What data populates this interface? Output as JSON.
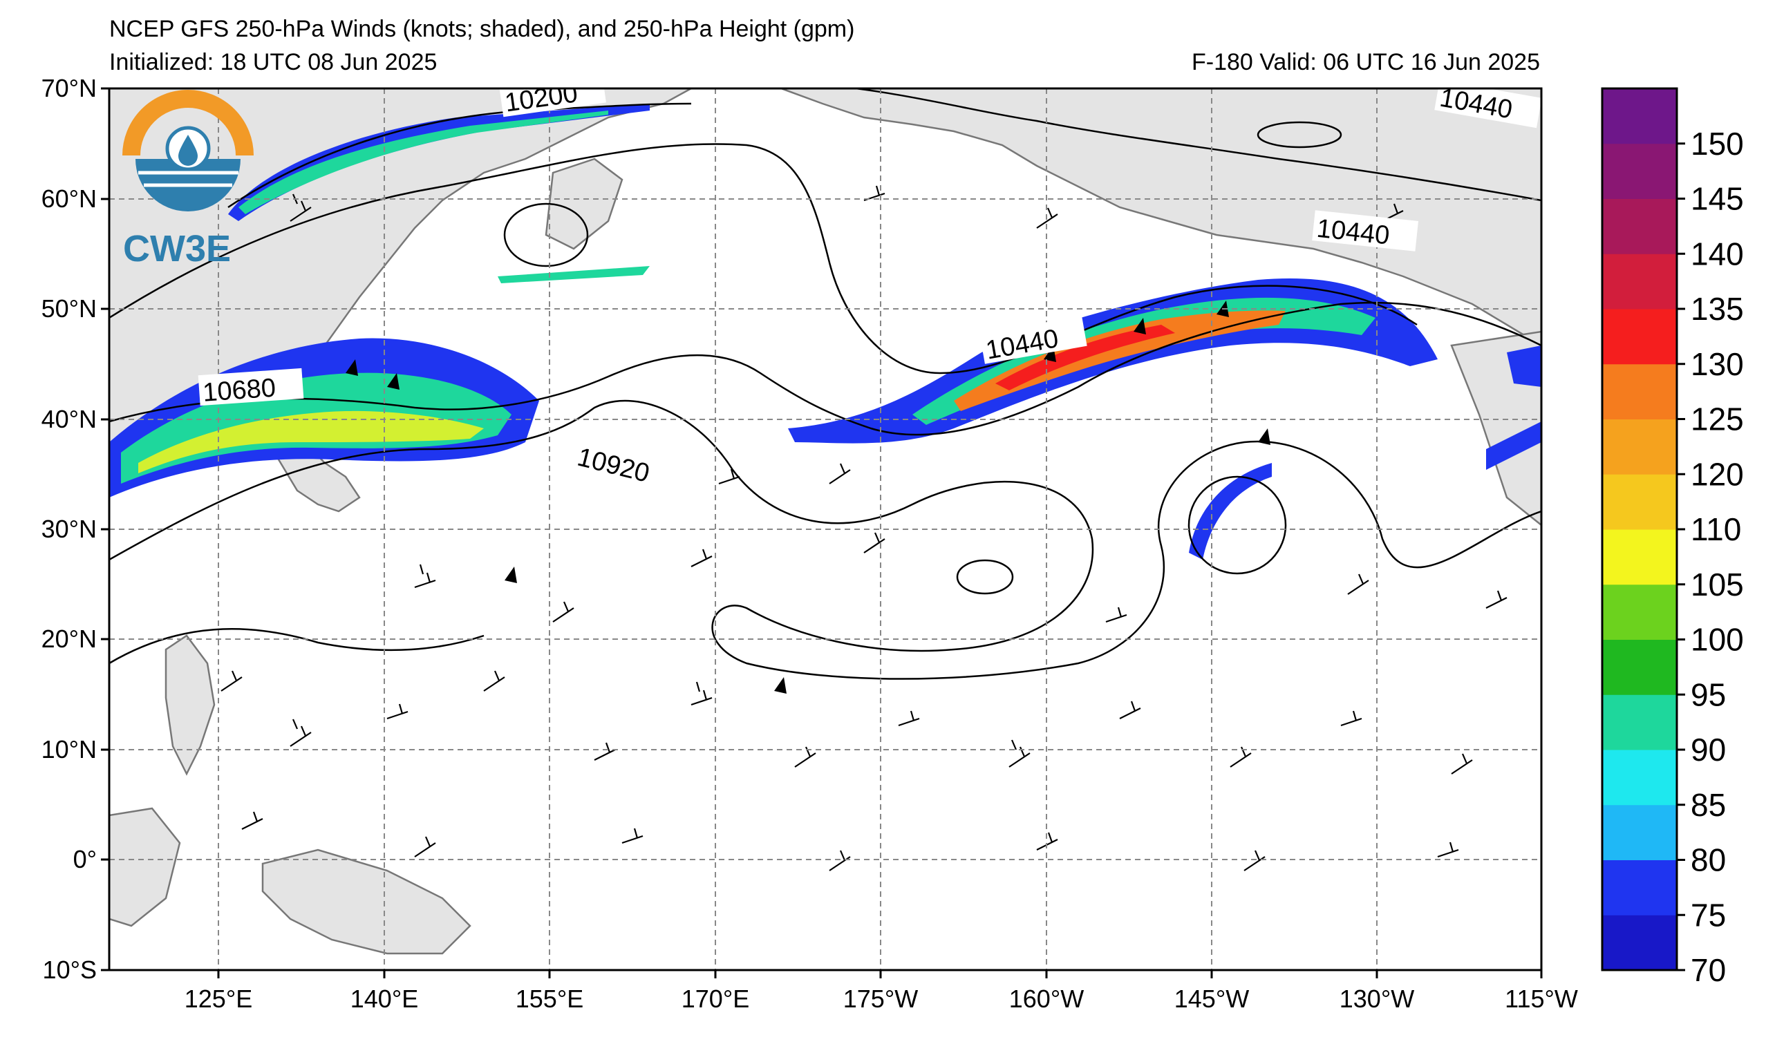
{
  "header": {
    "title_line1": "NCEP GFS 250-hPa Winds (knots; shaded), and 250-hPa Height (gpm)",
    "title_line2": "Initialized: 18 UTC 08 Jun 2025",
    "title_right": "F-180  Valid: 06 UTC 16 Jun 2025"
  },
  "logo": {
    "text": "CW3E",
    "colors": {
      "orange": "#f29a27",
      "blue": "#2e7fae"
    }
  },
  "map": {
    "lat_labels": [
      "70°N",
      "60°N",
      "50°N",
      "40°N",
      "30°N",
      "20°N",
      "10°N",
      "0°",
      "10°S"
    ],
    "lon_labels": [
      "125°E",
      "140°E",
      "155°E",
      "170°E",
      "175°W",
      "160°W",
      "145°W",
      "130°W",
      "115°W"
    ],
    "contour_labels": [
      "10200",
      "10440",
      "10440",
      "10440",
      "10680",
      "10920"
    ],
    "land_color": "#e4e4e4",
    "coast_color": "#777777"
  },
  "colorbar": {
    "labels": [
      "70",
      "75",
      "80",
      "85",
      "90",
      "95",
      "100",
      "105",
      "110",
      "120",
      "125",
      "130",
      "135",
      "140",
      "145",
      "150"
    ],
    "colors": [
      "#1818c8",
      "#1f35f0",
      "#1fb8f6",
      "#1ee8ee",
      "#1ed79c",
      "#1fb820",
      "#6cd21e",
      "#f3f51e",
      "#f5c81e",
      "#f5a21e",
      "#f57c1e",
      "#f51e1e",
      "#d21e3c",
      "#a8195a",
      "#8a1773",
      "#6e178a"
    ]
  }
}
